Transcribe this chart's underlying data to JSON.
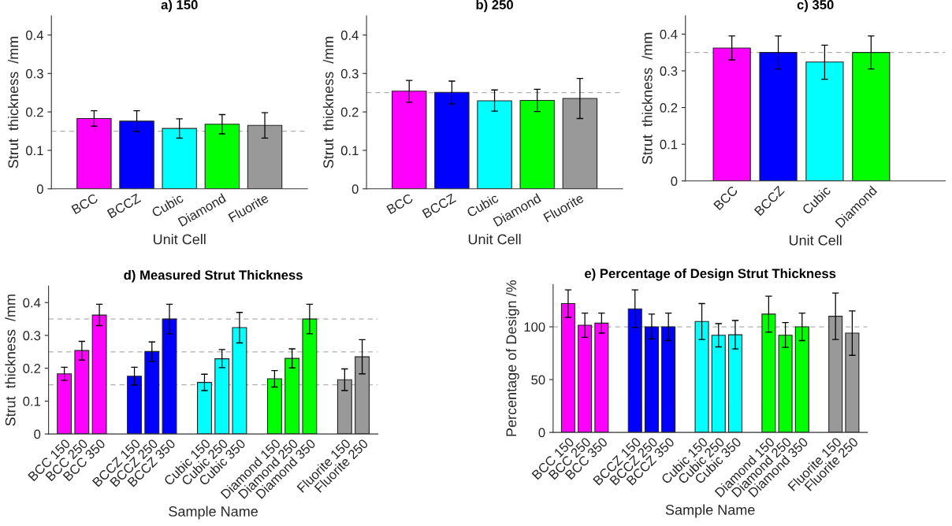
{
  "chart_data": [
    {
      "type": "bar",
      "title": "a) 150",
      "xlabel": "Unit Cell",
      "ylabel": "Strut  thickness  /mm",
      "categories": [
        "BCC",
        "BCCZ",
        "Cubic",
        "Diamond",
        "Fluorite"
      ],
      "values": [
        0.183,
        0.176,
        0.157,
        0.168,
        0.165
      ],
      "errors": [
        [
          0.163,
          0.203
        ],
        [
          0.149,
          0.203
        ],
        [
          0.132,
          0.182
        ],
        [
          0.143,
          0.193
        ],
        [
          0.132,
          0.198
        ]
      ],
      "colors": [
        "#ff00ff",
        "#0000ff",
        "#00ffff",
        "#00ff00",
        "#999999"
      ],
      "ylim": [
        0,
        0.45
      ],
      "yticks": [
        0,
        0.1,
        0.2,
        0.3,
        0.4
      ],
      "ref_lines": [
        {
          "axis": "y",
          "value": 0.15,
          "color": "#b0b0b0",
          "line_style": "dashed"
        }
      ]
    },
    {
      "type": "bar",
      "title": "b) 250",
      "xlabel": "Unit Cell",
      "ylabel": "Strut  thickness  /mm",
      "categories": [
        "BCC",
        "BCCZ",
        "Cubic",
        "Diamond",
        "Fluorite"
      ],
      "values": [
        0.254,
        0.251,
        0.229,
        0.23,
        0.235
      ],
      "errors": [
        [
          0.225,
          0.282
        ],
        [
          0.221,
          0.28
        ],
        [
          0.202,
          0.257
        ],
        [
          0.201,
          0.259
        ],
        [
          0.183,
          0.287
        ]
      ],
      "colors": [
        "#ff00ff",
        "#0000ff",
        "#00ffff",
        "#00ff00",
        "#999999"
      ],
      "ylim": [
        0,
        0.45
      ],
      "yticks": [
        0,
        0.1,
        0.2,
        0.3,
        0.4
      ],
      "ref_lines": [
        {
          "axis": "y",
          "value": 0.25,
          "color": "#b0b0b0",
          "line_style": "dashed"
        }
      ]
    },
    {
      "type": "bar",
      "title": "c) 350",
      "xlabel": "Unit Cell",
      "ylabel": "Strut  thickness  /mm",
      "categories": [
        "BCC",
        "BCCZ",
        "Cubic",
        "Diamond"
      ],
      "values": [
        0.362,
        0.35,
        0.324,
        0.35
      ],
      "errors": [
        [
          0.33,
          0.395
        ],
        [
          0.305,
          0.395
        ],
        [
          0.277,
          0.37
        ],
        [
          0.305,
          0.395
        ]
      ],
      "colors": [
        "#ff00ff",
        "#0000ff",
        "#00ffff",
        "#00ff00"
      ],
      "ylim": [
        0,
        0.45
      ],
      "yticks": [
        0,
        0.1,
        0.2,
        0.3,
        0.4
      ],
      "ref_lines": [
        {
          "axis": "y",
          "value": 0.35,
          "color": "#b0b0b0",
          "line_style": "dashed"
        }
      ]
    },
    {
      "type": "bar",
      "title": "d) Measured Strut Thickness",
      "xlabel": "Sample Name",
      "ylabel": "Strut  thickness  /mm",
      "categories": [
        "BCC 150",
        "BCC 250",
        "BCC 350",
        null,
        "BCCZ 150",
        "BCCZ 250",
        "BCCZ 350",
        null,
        "Cubic 150",
        "Cubic 250",
        "Cubic 350",
        null,
        "Diamond 150",
        "Diamond 250",
        "Diamond 350",
        null,
        "Fluorite 150",
        "Fluorite 250"
      ],
      "values": [
        0.183,
        0.254,
        0.362,
        null,
        0.176,
        0.251,
        0.35,
        null,
        0.157,
        0.229,
        0.324,
        null,
        0.168,
        0.23,
        0.35,
        null,
        0.165,
        0.235
      ],
      "errors": [
        [
          0.163,
          0.203
        ],
        [
          0.225,
          0.282
        ],
        [
          0.33,
          0.395
        ],
        null,
        [
          0.149,
          0.203
        ],
        [
          0.221,
          0.28
        ],
        [
          0.305,
          0.395
        ],
        null,
        [
          0.132,
          0.182
        ],
        [
          0.202,
          0.257
        ],
        [
          0.277,
          0.37
        ],
        null,
        [
          0.143,
          0.193
        ],
        [
          0.201,
          0.259
        ],
        [
          0.305,
          0.395
        ],
        null,
        [
          0.132,
          0.198
        ],
        [
          0.183,
          0.287
        ]
      ],
      "colors": [
        "#ff00ff",
        "#ff00ff",
        "#ff00ff",
        null,
        "#0000ff",
        "#0000ff",
        "#0000ff",
        null,
        "#00ffff",
        "#00ffff",
        "#00ffff",
        null,
        "#00ff00",
        "#00ff00",
        "#00ff00",
        null,
        "#999999",
        "#999999"
      ],
      "ylim": [
        0,
        0.45
      ],
      "yticks": [
        0,
        0.1,
        0.2,
        0.3,
        0.4
      ],
      "ref_lines": [
        {
          "axis": "y",
          "value": 0.15,
          "color": "#b0b0b0",
          "line_style": "dashed"
        },
        {
          "axis": "y",
          "value": 0.25,
          "color": "#b0b0b0",
          "line_style": "dashed"
        },
        {
          "axis": "y",
          "value": 0.35,
          "color": "#b0b0b0",
          "line_style": "dashed"
        }
      ]
    },
    {
      "type": "bar",
      "title": "e) Percentage of Design Strut Thickness",
      "xlabel": "Sample Name",
      "ylabel": "Percentage of Design /%",
      "categories": [
        "BCC 150",
        "BCC 250",
        "BCC 350",
        null,
        "BCCZ 150",
        "BCCZ 250",
        "BCCZ 350",
        null,
        "Cubic 150",
        "Cubic 250",
        "Cubic 350",
        null,
        "Diamond 150",
        "Diamond 250",
        "Diamond 350",
        null,
        "Fluorite 150",
        "Fluorite 250"
      ],
      "values": [
        122,
        101.5,
        103.5,
        null,
        117,
        100,
        100,
        null,
        105,
        92,
        92.5,
        null,
        112,
        92,
        100,
        null,
        110,
        94
      ],
      "errors": [
        [
          109,
          135
        ],
        [
          90,
          113
        ],
        [
          94,
          113
        ],
        null,
        [
          99.5,
          135
        ],
        [
          88.5,
          112
        ],
        [
          87,
          113
        ],
        null,
        [
          88,
          122
        ],
        [
          81,
          103
        ],
        [
          79,
          106
        ],
        null,
        [
          95,
          129
        ],
        [
          80.5,
          104
        ],
        [
          87,
          113
        ],
        null,
        [
          88,
          132
        ],
        [
          73,
          115
        ]
      ],
      "colors": [
        "#ff00ff",
        "#ff00ff",
        "#ff00ff",
        null,
        "#0000ff",
        "#0000ff",
        "#0000ff",
        null,
        "#00ffff",
        "#00ffff",
        "#00ffff",
        null,
        "#00ff00",
        "#00ff00",
        "#00ff00",
        null,
        "#999999",
        "#999999"
      ],
      "ylim": [
        0,
        140
      ],
      "yticks": [
        0,
        50,
        100
      ],
      "ref_lines": [
        {
          "axis": "y",
          "value": 100,
          "color": "#b0b0b0",
          "line_style": "dashed"
        }
      ]
    }
  ]
}
